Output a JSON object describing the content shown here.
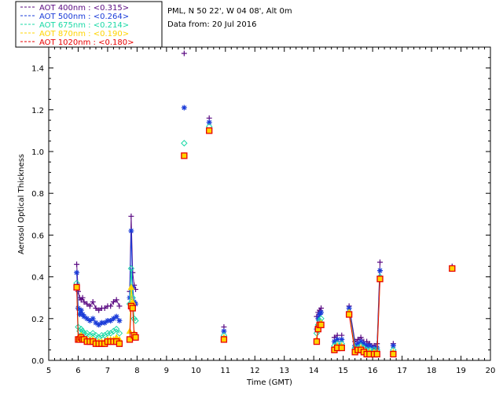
{
  "header": {
    "site": "PML, N 50 22', W 04 08', Alt 0m",
    "date": "Data from: 20 Jul 2016"
  },
  "colors": {
    "aot400": "#5a0a82",
    "aot500": "#1a3bd8",
    "aot675": "#19d9a6",
    "aot870": "#ffd400",
    "aot1020": "#e80000",
    "frame": "#000000"
  },
  "chart_data": {
    "type": "scatter",
    "title": "",
    "xlabel": "Time (GMT)",
    "ylabel": "Aerosol Optical Thickness",
    "xlim": [
      5,
      20
    ],
    "ylim": [
      0,
      1.5
    ],
    "xticks": [
      5,
      6,
      7,
      8,
      9,
      10,
      11,
      12,
      13,
      14,
      15,
      16,
      17,
      18,
      19,
      20
    ],
    "yticks": [
      0.0,
      0.2,
      0.4,
      0.6,
      0.8,
      1.0,
      1.2,
      1.4
    ],
    "xtick_labels": [
      "5",
      "6",
      "7",
      "8",
      "9",
      "10",
      "11",
      "12",
      "13",
      "14",
      "15",
      "16",
      "17",
      "18",
      "19",
      "20"
    ],
    "ytick_labels": [
      "0.0",
      "0.2",
      "0.4",
      "0.6",
      "0.8",
      "1.0",
      "1.2",
      "1.4"
    ],
    "grid": false,
    "legend_position": "top-left, outside",
    "x": [
      5.95,
      6.0,
      6.05,
      6.1,
      6.15,
      6.2,
      6.3,
      6.4,
      6.5,
      6.6,
      6.7,
      6.8,
      6.9,
      7.0,
      7.1,
      7.2,
      7.3,
      7.4,
      7.75,
      7.8,
      7.85,
      7.9,
      7.95,
      9.6,
      10.45,
      10.95,
      14.1,
      14.15,
      14.2,
      14.25,
      14.7,
      14.8,
      14.95,
      15.2,
      15.4,
      15.5,
      15.6,
      15.7,
      15.8,
      15.9,
      16.05,
      16.15,
      16.25,
      16.7,
      18.7
    ],
    "series": [
      {
        "name": "AOT  400nm : <0.315>",
        "marker": "plus",
        "connect_segments": [
          [
            0,
            17
          ],
          [
            18,
            22
          ],
          [
            26,
            29
          ],
          [
            30,
            32
          ],
          [
            33,
            42
          ]
        ],
        "values": [
          0.46,
          0.33,
          0.3,
          0.29,
          0.3,
          0.28,
          0.27,
          0.26,
          0.28,
          0.25,
          0.24,
          0.25,
          0.25,
          0.26,
          0.26,
          0.28,
          0.29,
          0.26,
          0.33,
          0.69,
          0.42,
          0.36,
          0.34,
          1.47,
          1.16,
          0.16,
          0.21,
          0.23,
          0.24,
          0.25,
          0.11,
          0.12,
          0.12,
          0.26,
          0.09,
          0.1,
          0.11,
          0.09,
          0.09,
          0.08,
          0.07,
          0.08,
          0.47,
          0.08,
          0.45
        ]
      },
      {
        "name": "AOT  500nm : <0.264>",
        "marker": "asterisk",
        "connect_segments": [
          [
            0,
            17
          ],
          [
            18,
            22
          ],
          [
            26,
            29
          ],
          [
            30,
            32
          ],
          [
            33,
            42
          ]
        ],
        "values": [
          0.42,
          0.25,
          0.22,
          0.24,
          0.22,
          0.21,
          0.2,
          0.19,
          0.2,
          0.18,
          0.17,
          0.18,
          0.18,
          0.19,
          0.19,
          0.2,
          0.21,
          0.19,
          0.3,
          0.62,
          0.35,
          0.28,
          0.27,
          1.21,
          1.14,
          0.14,
          0.15,
          0.2,
          0.22,
          0.23,
          0.09,
          0.1,
          0.1,
          0.25,
          0.07,
          0.08,
          0.09,
          0.08,
          0.07,
          0.07,
          0.06,
          0.06,
          0.43,
          0.07,
          0.44
        ]
      },
      {
        "name": "AOT  675nm : <0.214>",
        "marker": "diamond",
        "connect_segments": [
          [
            0,
            17
          ],
          [
            18,
            22
          ],
          [
            26,
            29
          ],
          [
            30,
            32
          ],
          [
            33,
            42
          ]
        ],
        "values": [
          0.37,
          0.16,
          0.14,
          0.15,
          0.14,
          0.13,
          0.13,
          0.12,
          0.13,
          0.12,
          0.11,
          0.12,
          0.12,
          0.13,
          0.13,
          0.14,
          0.15,
          0.13,
          0.27,
          0.44,
          0.3,
          0.2,
          0.19,
          1.04,
          1.12,
          0.12,
          0.13,
          0.17,
          0.19,
          0.2,
          0.07,
          0.08,
          0.08,
          0.23,
          0.06,
          0.06,
          0.07,
          0.06,
          0.05,
          0.05,
          0.05,
          0.05,
          0.4,
          0.05,
          0.44
        ]
      },
      {
        "name": "AOT  870nm : <0.190>",
        "marker": "triangle",
        "connect_segments": [
          [
            0,
            17
          ],
          [
            18,
            22
          ],
          [
            26,
            29
          ],
          [
            30,
            32
          ],
          [
            33,
            42
          ]
        ],
        "values": [
          0.35,
          0.11,
          0.11,
          0.12,
          0.11,
          0.1,
          0.1,
          0.1,
          0.1,
          0.09,
          0.09,
          0.09,
          0.09,
          0.1,
          0.1,
          0.1,
          0.11,
          0.1,
          0.14,
          0.35,
          0.28,
          0.13,
          0.12,
          0.98,
          1.1,
          0.11,
          0.1,
          0.16,
          0.17,
          0.18,
          0.06,
          0.07,
          0.07,
          0.23,
          0.05,
          0.05,
          0.06,
          0.05,
          0.04,
          0.04,
          0.04,
          0.04,
          0.39,
          0.04,
          0.44
        ]
      },
      {
        "name": "AOT 1020nm : <0.180>",
        "marker": "square",
        "connect_segments": [
          [
            0,
            17
          ],
          [
            18,
            22
          ],
          [
            26,
            29
          ],
          [
            30,
            32
          ],
          [
            33,
            42
          ]
        ],
        "values": [
          0.35,
          0.1,
          0.1,
          0.11,
          0.1,
          0.1,
          0.09,
          0.09,
          0.09,
          0.08,
          0.08,
          0.08,
          0.08,
          0.09,
          0.09,
          0.09,
          0.09,
          0.08,
          0.1,
          0.26,
          0.25,
          0.12,
          0.11,
          0.98,
          1.1,
          0.1,
          0.09,
          0.15,
          0.17,
          0.17,
          0.05,
          0.06,
          0.06,
          0.22,
          0.04,
          0.05,
          0.05,
          0.04,
          0.03,
          0.03,
          0.03,
          0.03,
          0.39,
          0.03,
          0.44
        ]
      }
    ]
  }
}
